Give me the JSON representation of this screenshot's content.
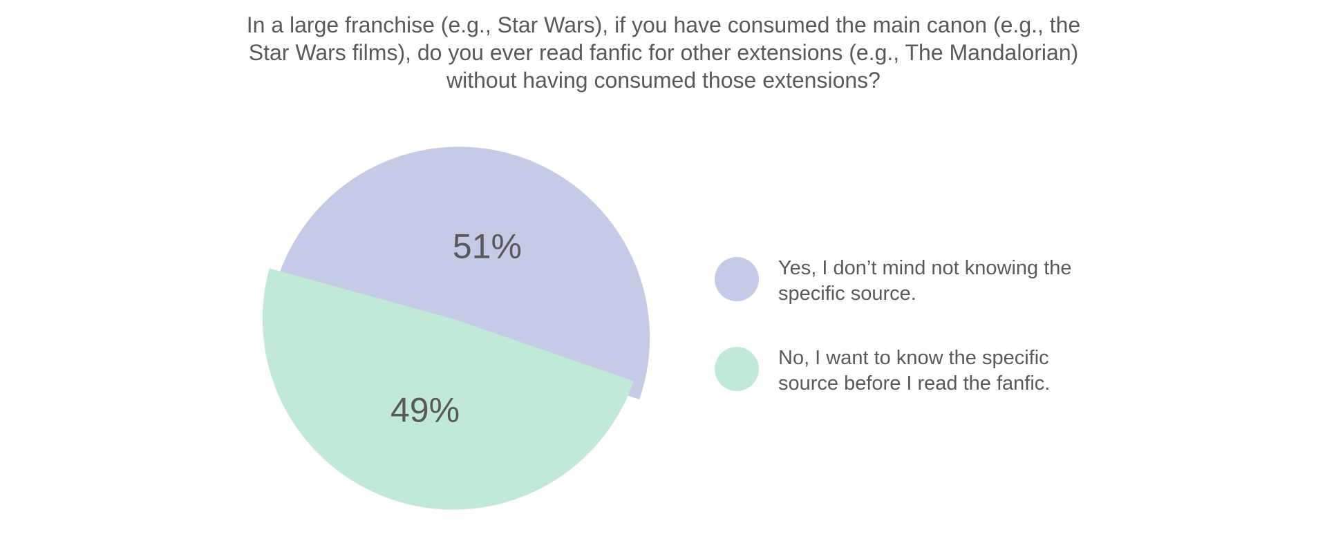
{
  "chart_data": {
    "type": "pie",
    "title": "In a large franchise (e.g., Star Wars), if you have consumed the main canon (e.g., the Star Wars films), do you ever read fanfic for other extensions (e.g., The Mandalorian) without having consumed those extensions?",
    "slices": [
      {
        "name": "Yes, I don’t mind not knowing the specific source.",
        "value": 51,
        "label": "51%",
        "color": "#c5cae6"
      },
      {
        "name": "No, I want to know the specific source before I read the fanfic.",
        "value": 49,
        "label": "49%",
        "color": "#c0e9d7"
      }
    ],
    "legend_position": "right"
  }
}
